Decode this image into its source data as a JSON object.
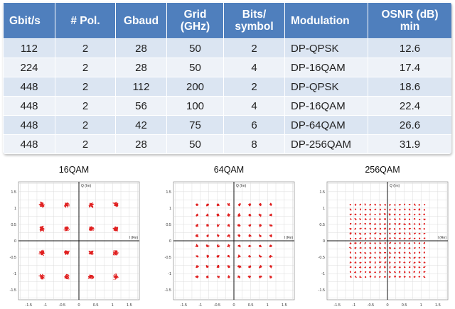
{
  "table": {
    "headers": [
      "Gbit/s",
      "# Pol.",
      "Gbaud",
      "Grid (GHz)",
      "Bits/ symbol",
      "Modulation",
      "OSNR (dB) min"
    ],
    "rows": [
      [
        "112",
        "2",
        "28",
        "50",
        "2",
        "DP-QPSK",
        "12.6"
      ],
      [
        "224",
        "2",
        "28",
        "50",
        "4",
        "DP-16QAM",
        "17.4"
      ],
      [
        "448",
        "2",
        "112",
        "200",
        "2",
        "DP-QPSK",
        "18.6"
      ],
      [
        "448",
        "2",
        "56",
        "100",
        "4",
        "DP-16QAM",
        "22.4"
      ],
      [
        "448",
        "2",
        "42",
        "75",
        "6",
        "DP-64QAM",
        "26.6"
      ],
      [
        "448",
        "2",
        "28",
        "50",
        "8",
        "DP-256QAM",
        "31.9"
      ]
    ]
  },
  "constellations": [
    {
      "title": "16QAM",
      "order": 16
    },
    {
      "title": "64QAM",
      "order": 64
    },
    {
      "title": "256QAM",
      "order": 256
    }
  ],
  "axes": {
    "x_ticks": [
      "-1.5",
      "-1",
      "-0.5",
      "0",
      "0.5",
      "1",
      "1.5"
    ],
    "y_ticks": [
      "1.5",
      "1",
      "0.5",
      "0",
      "-0.5",
      "-1",
      "-1.5"
    ],
    "x_label": "I (Re)",
    "y_label": "Q (Im)"
  },
  "colors": {
    "header_bg": "#4f7fbd",
    "row_odd": "#dbe5f2",
    "row_even": "#eef2f8",
    "points": "#e02020"
  }
}
